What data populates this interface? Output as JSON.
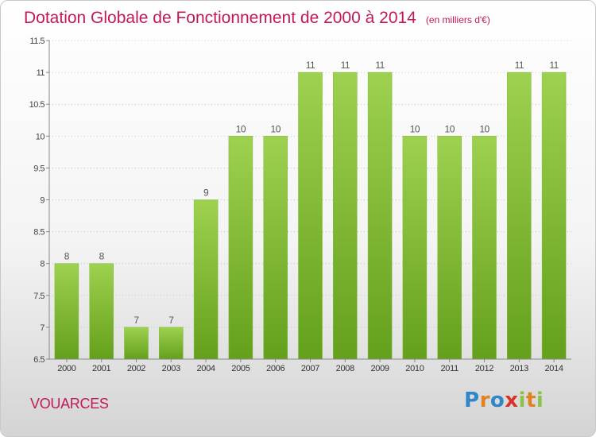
{
  "chart_data": {
    "type": "bar",
    "title": "Dotation Globale de Fonctionnement de 2000 à 2014",
    "subtitle": "(en milliers d'€)",
    "categories": [
      "2000",
      "2001",
      "2002",
      "2003",
      "2004",
      "2005",
      "2006",
      "2007",
      "2008",
      "2009",
      "2010",
      "2011",
      "2012",
      "2013",
      "2014"
    ],
    "values": [
      8,
      8,
      7,
      7,
      9,
      10,
      10,
      11,
      11,
      11,
      10,
      10,
      10,
      11,
      11
    ],
    "data_labels": [
      "8",
      "8",
      "7",
      "7",
      "9",
      "10",
      "10",
      "11",
      "11",
      "11",
      "10",
      "10",
      "10",
      "11",
      "11"
    ],
    "ylim": [
      6.5,
      11.5
    ],
    "yticks": [
      6.5,
      7,
      7.5,
      8,
      8.5,
      9,
      9.5,
      10,
      10.5,
      11,
      11.5
    ],
    "ytick_labels": [
      "6.5",
      "7",
      "7.5",
      "8",
      "8.5",
      "9",
      "9.5",
      "10",
      "10.5",
      "11",
      "11.5"
    ],
    "grid": "horizontal-dotted",
    "bar_color": "#8cc63f",
    "bar_color_dark": "#6aa521"
  },
  "commune": "VOUARCES",
  "logo": {
    "letters": [
      "P",
      "r",
      "o",
      "x",
      "i",
      "t",
      "i"
    ],
    "colors": [
      "#2f86c9",
      "#e0821f",
      "#2f86c9",
      "#d8332a",
      "#8bc34a",
      "#e0821f",
      "#8bc34a"
    ]
  }
}
